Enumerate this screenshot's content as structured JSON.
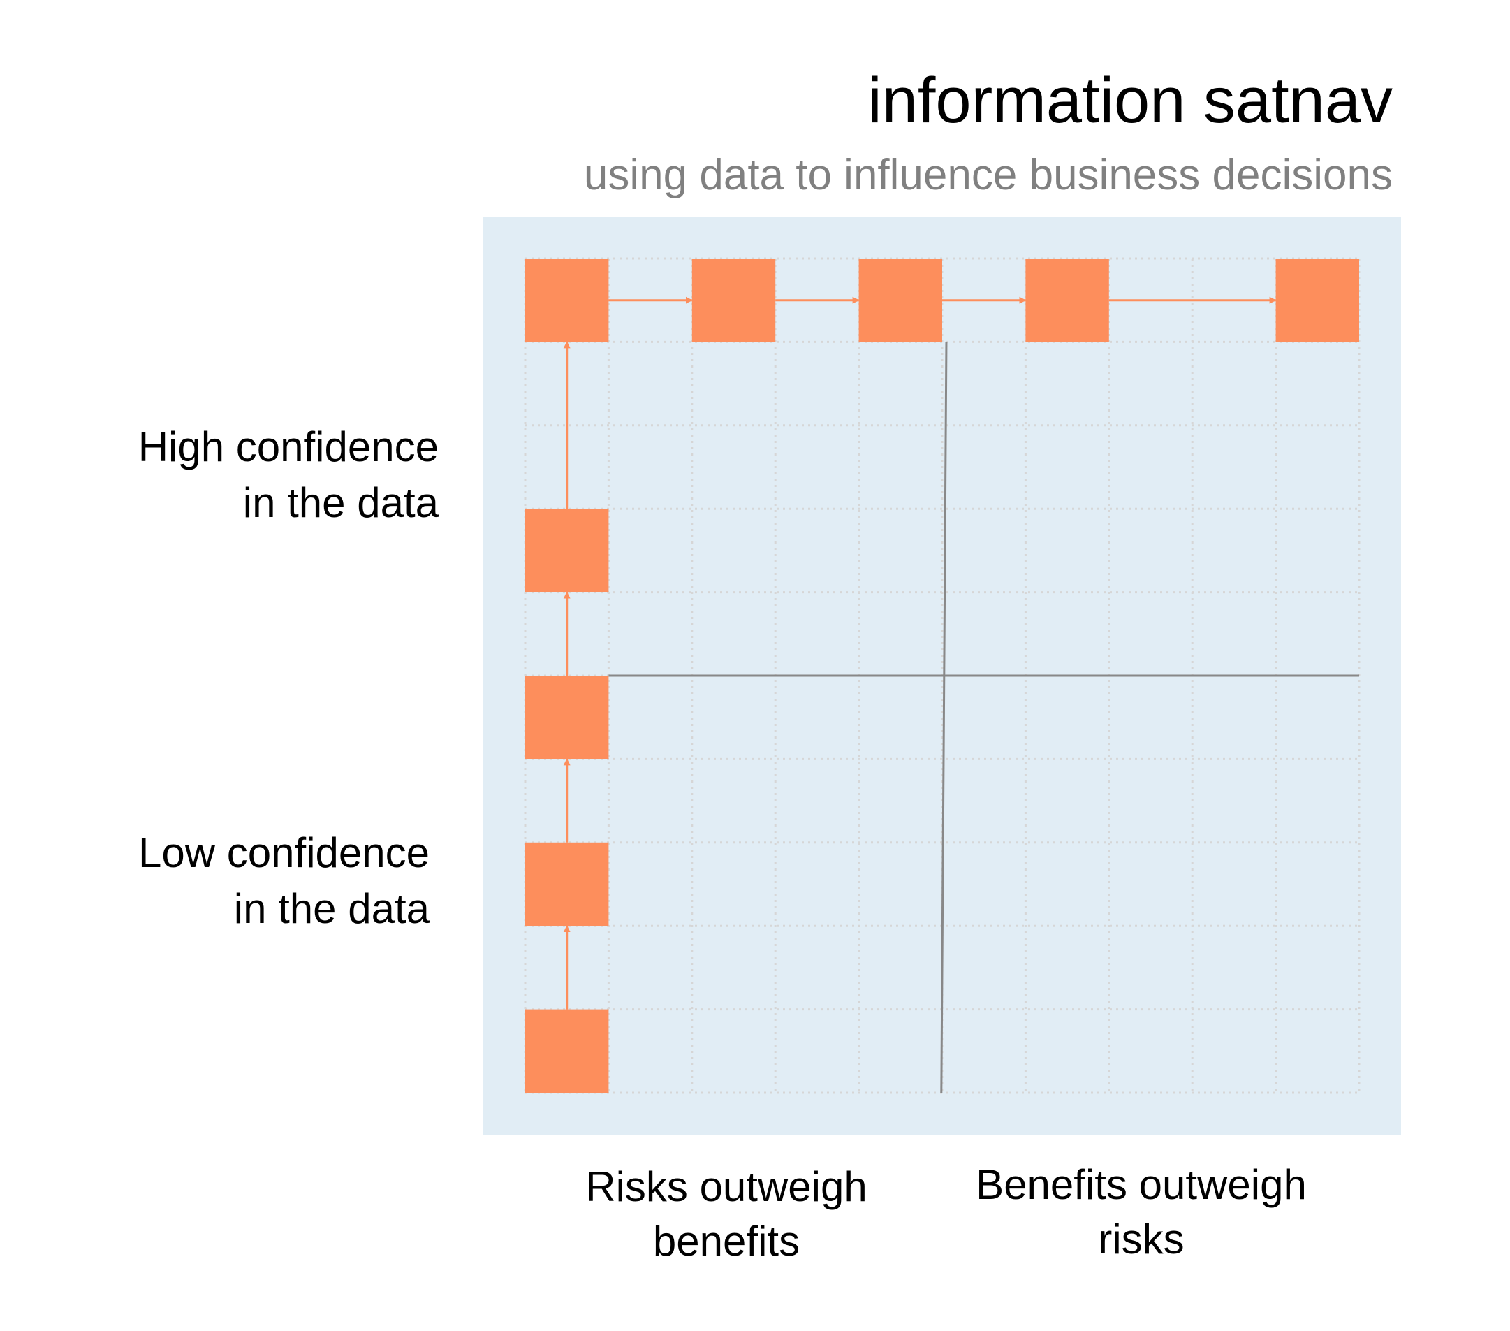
{
  "title": "information satnav",
  "subtitle": "using data to influence business decisions",
  "y_labels": {
    "high": "High confidence\nin the data",
    "low": "Low confidence\nin the data"
  },
  "x_labels": {
    "left": "Risks outweigh\nbenefits",
    "right": "Benefits outweigh\nrisks"
  },
  "colors": {
    "panel_background": "#e1edf5",
    "box_fill": "#fd8e5c",
    "arrow": "#fd8e5c",
    "quadrant_lines": "#888888",
    "grid": "#d6d6d6",
    "subtitle": "#808080"
  },
  "grid": {
    "columns": 10,
    "rows": 10
  },
  "path_steps": [
    {
      "col": 0,
      "row": 9
    },
    {
      "col": 0,
      "row": 7
    },
    {
      "col": 0,
      "row": 5
    },
    {
      "col": 0,
      "row": 3
    },
    {
      "col": 0,
      "row": 0
    },
    {
      "col": 2,
      "row": 0
    },
    {
      "col": 4,
      "row": 0
    },
    {
      "col": 6,
      "row": 0
    },
    {
      "col": 9,
      "row": 0
    }
  ]
}
